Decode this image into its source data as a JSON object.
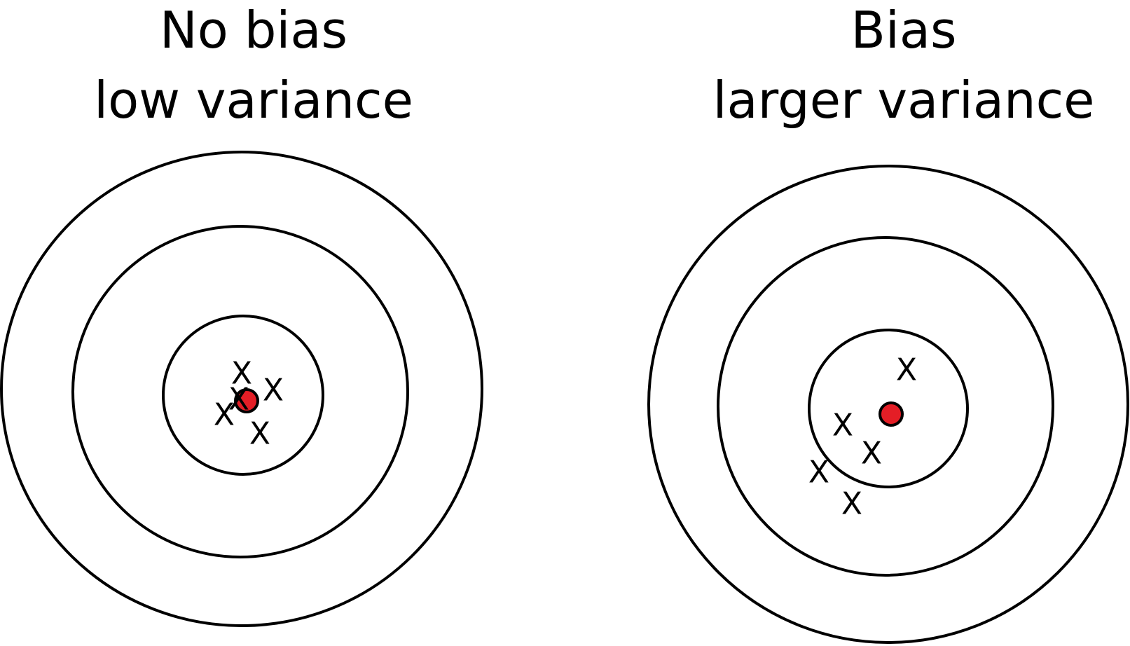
{
  "colors": {
    "bullseye": "#e41e26",
    "stroke": "#000000",
    "background": "#ffffff"
  },
  "panels": [
    {
      "title_line1": "No bias",
      "title_line2": "low variance",
      "marks": [
        "X",
        "X",
        "X",
        "X",
        "X"
      ]
    },
    {
      "title_line1": "Bias",
      "title_line2": "larger variance",
      "marks": [
        "X",
        "X",
        "X",
        "X",
        "X"
      ]
    }
  ]
}
